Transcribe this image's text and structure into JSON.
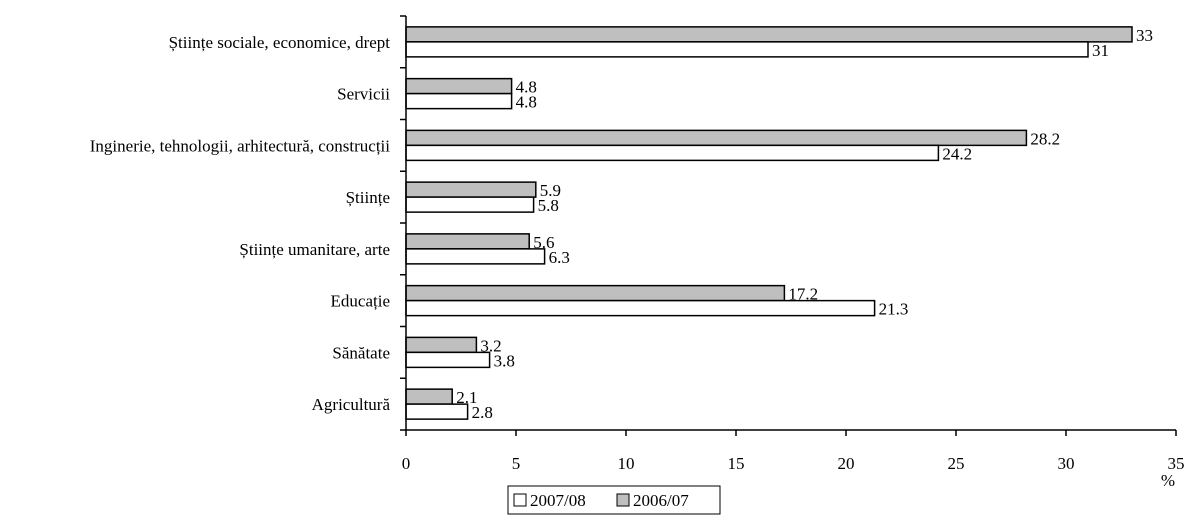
{
  "chart_data": {
    "type": "bar",
    "orientation": "horizontal",
    "categories": [
      "Științe sociale, economice, drept",
      "Servicii",
      "Inginerie, tehnologii, arhitectură, construcții",
      "Științe",
      "Științe umanitare, arte",
      "Educație",
      "Sănătate",
      "Agricultură"
    ],
    "series": [
      {
        "name": "2006/07",
        "color": "#bfbfbf",
        "values": [
          33,
          4.8,
          28.2,
          5.9,
          5.6,
          17.2,
          3.2,
          2.1
        ]
      },
      {
        "name": "2007/08",
        "color": "#ffffff",
        "values": [
          31,
          4.8,
          24.2,
          5.8,
          6.3,
          21.3,
          3.8,
          2.8
        ]
      }
    ],
    "value_labels": [
      [
        "33",
        "4.8",
        "28.2",
        "5.9",
        "5.6",
        "17.2",
        "3.2",
        "2.1"
      ],
      [
        "31",
        "4.8",
        "24.2",
        "5.8",
        "6.3",
        "21.3",
        "3.8",
        "2.8"
      ]
    ],
    "xlim": [
      0,
      35
    ],
    "xticks": [
      "0",
      "5",
      "10",
      "15",
      "20",
      "25",
      "30",
      "35"
    ],
    "xunit": "%",
    "grid": false,
    "legend": {
      "position": "bottom",
      "entries": [
        {
          "label": "2007/08",
          "color": "#ffffff"
        },
        {
          "label": "2006/07",
          "color": "#bfbfbf"
        }
      ]
    }
  }
}
